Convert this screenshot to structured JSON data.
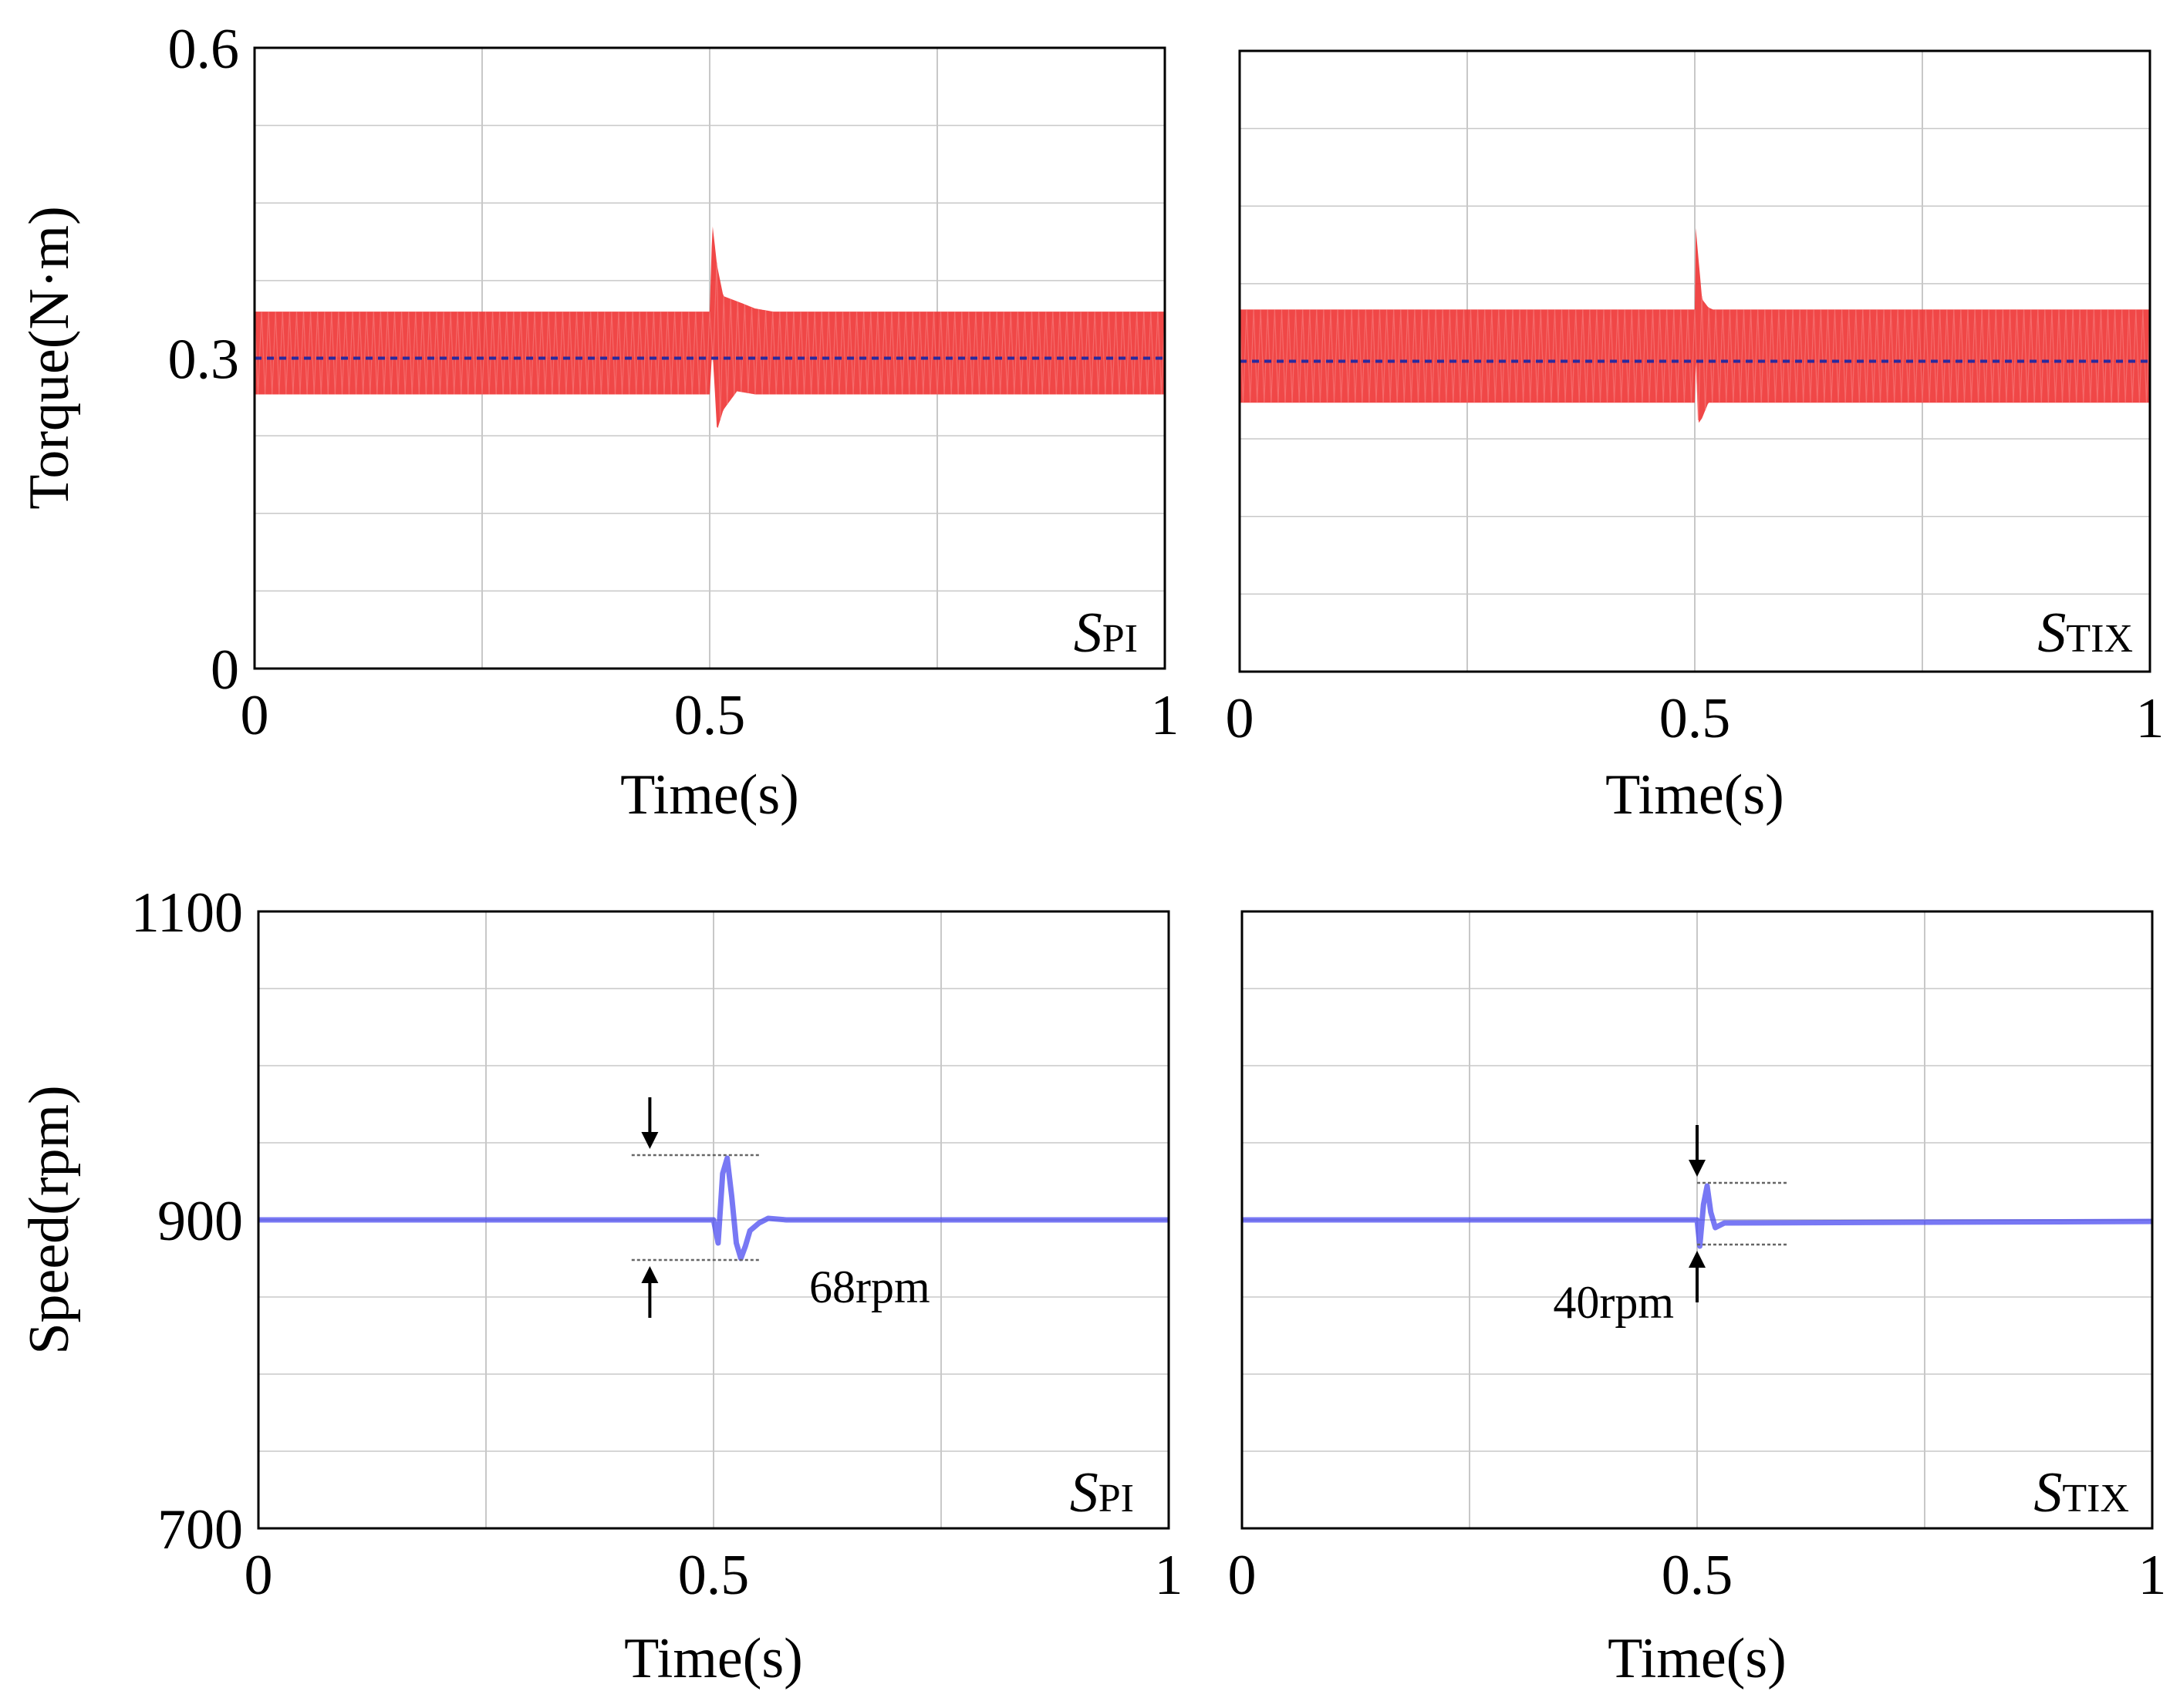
{
  "figure": {
    "colors": {
      "torque_band": "#ee3333",
      "torque_mean": "#2a2a9e",
      "speed_line": "#4b4bf0",
      "grid": "#c8c8c8",
      "guide": "#666666",
      "axis": "#000000"
    }
  },
  "chart_data": [
    {
      "id": "torque_pi",
      "type": "line",
      "panel_tag": {
        "main": "S",
        "sub": "PI"
      },
      "xlabel": "Time(s)",
      "ylabel": "Torque(N·m)",
      "xlim": [
        0,
        1
      ],
      "ylim": [
        0,
        0.6
      ],
      "x_ticks": [
        0,
        0.5,
        1
      ],
      "x_tick_labels": [
        "0",
        "0.5",
        "1"
      ],
      "y_ticks": [
        0,
        0.3,
        0.6
      ],
      "y_tick_labels": [
        "0",
        "0.3",
        "0.6"
      ],
      "series": [
        {
          "name": "torque",
          "kind": "ripple_band",
          "mean": 0.3,
          "envelope": {
            "x": [
              0,
              0.5,
              0.503,
              0.508,
              0.515,
              0.53,
              0.55,
              0.57,
              1
            ],
            "upper": [
              0.345,
              0.345,
              0.43,
              0.39,
              0.36,
              0.355,
              0.348,
              0.345,
              0.345
            ],
            "lower": [
              0.265,
              0.265,
              0.31,
              0.23,
              0.25,
              0.268,
              0.265,
              0.265,
              0.265
            ]
          }
        },
        {
          "name": "reference",
          "kind": "dashed",
          "x": [
            0,
            1
          ],
          "y": [
            0.3,
            0.3
          ]
        }
      ]
    },
    {
      "id": "torque_tix",
      "type": "line",
      "panel_tag": {
        "main": "S",
        "sub": "TIX"
      },
      "xlabel": "Time(s)",
      "ylabel": "",
      "xlim": [
        0,
        1
      ],
      "ylim": [
        0,
        0.6
      ],
      "x_ticks": [
        0,
        0.5,
        1
      ],
      "x_tick_labels": [
        "0",
        "0.5",
        "1"
      ],
      "y_ticks": [
        0,
        0.3,
        0.6
      ],
      "y_tick_labels": [],
      "series": [
        {
          "name": "torque",
          "kind": "ripple_band",
          "mean": 0.3,
          "envelope": {
            "x": [
              0,
              0.5,
              0.501,
              0.504,
              0.508,
              0.515,
              0.52,
              1
            ],
            "upper": [
              0.35,
              0.35,
              0.43,
              0.4,
              0.36,
              0.352,
              0.35,
              0.35
            ],
            "lower": [
              0.26,
              0.26,
              0.3,
              0.24,
              0.245,
              0.26,
              0.26,
              0.26
            ]
          }
        },
        {
          "name": "reference",
          "kind": "dashed",
          "x": [
            0,
            1
          ],
          "y": [
            0.3,
            0.3
          ]
        }
      ]
    },
    {
      "id": "speed_pi",
      "type": "line",
      "panel_tag": {
        "main": "S",
        "sub": "PI"
      },
      "xlabel": "Time(s)",
      "ylabel": "Speed(rpm)",
      "xlim": [
        0,
        1
      ],
      "ylim": [
        700,
        1100
      ],
      "x_ticks": [
        0,
        0.5,
        1
      ],
      "x_tick_labels": [
        "0",
        "0.5",
        "1"
      ],
      "y_ticks": [
        700,
        900,
        1100
      ],
      "y_tick_labels": [
        "700",
        "900",
        "1100"
      ],
      "series": [
        {
          "name": "speed",
          "kind": "line",
          "x": [
            0,
            0.5,
            0.505,
            0.51,
            0.515,
            0.52,
            0.525,
            0.53,
            0.535,
            0.54,
            0.55,
            0.56,
            0.58,
            1
          ],
          "y": [
            900,
            900,
            885,
            930,
            940,
            915,
            885,
            875,
            883,
            893,
            898,
            901,
            900,
            900
          ]
        }
      ],
      "annotation": {
        "text": "68rpm",
        "upper": 942,
        "lower": 874,
        "x_from": 0.41,
        "x_to": 0.55,
        "arrow_x": 0.43
      }
    },
    {
      "id": "speed_tix",
      "type": "line",
      "panel_tag": {
        "main": "S",
        "sub": "TIX"
      },
      "xlabel": "Time(s)",
      "ylabel": "",
      "xlim": [
        0,
        1
      ],
      "ylim": [
        700,
        1100
      ],
      "x_ticks": [
        0,
        0.5,
        1
      ],
      "x_tick_labels": [
        "0",
        "0.5",
        "1"
      ],
      "y_ticks": [
        700,
        900,
        1100
      ],
      "y_tick_labels": [],
      "series": [
        {
          "name": "speed",
          "kind": "line",
          "x": [
            0,
            0.5,
            0.503,
            0.507,
            0.511,
            0.515,
            0.52,
            0.53,
            1
          ],
          "y": [
            900,
            900,
            883,
            910,
            922,
            905,
            895,
            898,
            899
          ]
        }
      ],
      "annotation": {
        "text": "40rpm",
        "upper": 924,
        "lower": 884,
        "x_from": 0.5,
        "x_to": 0.6,
        "arrow_x": 0.5
      }
    }
  ]
}
